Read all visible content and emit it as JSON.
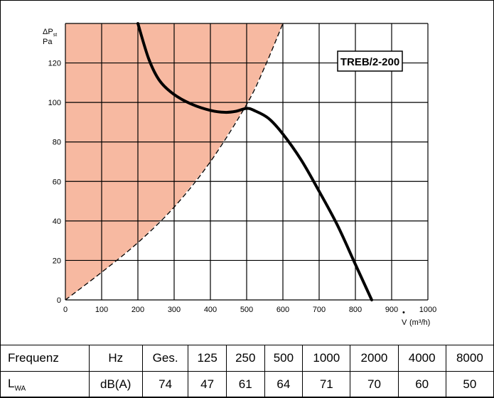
{
  "chart_data": {
    "type": "line",
    "model_label": "TREB/2-200",
    "y_unit_symbol": "ΔP",
    "y_unit_sub": "st",
    "y_unit": "Pa",
    "x_unit_symbol": "V",
    "x_unit": "(m³/h)",
    "xlim": [
      0,
      1000
    ],
    "ylim": [
      0,
      140
    ],
    "x_ticks": [
      "0",
      "100",
      "200",
      "300",
      "400",
      "500",
      "600",
      "700",
      "800",
      "900",
      "1000"
    ],
    "y_ticks": [
      "0",
      "20",
      "40",
      "60",
      "80",
      "100",
      "120"
    ],
    "grid": true,
    "series": [
      {
        "role": "fan-curve",
        "x": [
          200,
          230,
          260,
          300,
          350,
          400,
          440,
          470,
          500,
          520,
          560,
          600,
          650,
          700,
          750,
          800,
          845
        ],
        "y": [
          140,
          122,
          111,
          104,
          99,
          96,
          95,
          95.5,
          97,
          96,
          92,
          84,
          71,
          55,
          38,
          18,
          0
        ]
      },
      {
        "role": "limit-curve-dashed",
        "x": [
          0,
          100,
          200,
          300,
          400,
          500,
          550,
          600
        ],
        "y": [
          0,
          14,
          29,
          47,
          70,
          99,
          118,
          140
        ]
      }
    ],
    "shaded_region_color": "#f7b9a1",
    "curve_color": "#000000"
  },
  "table": {
    "header": [
      "Frequenz",
      "Hz",
      "Ges.",
      "125",
      "250",
      "500",
      "1000",
      "2000",
      "4000",
      "8000"
    ],
    "row_label": "L",
    "row_label_sub": "WA",
    "row": [
      "dB(A)",
      "74",
      "47",
      "61",
      "64",
      "71",
      "70",
      "60",
      "50"
    ]
  }
}
